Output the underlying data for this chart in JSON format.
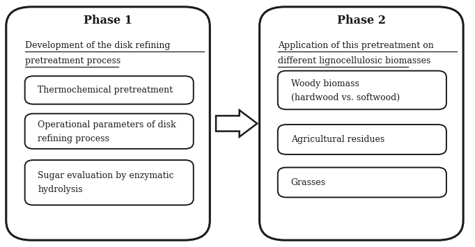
{
  "bg_color": "#ffffff",
  "border_color": "#1a1a1a",
  "text_color": "#1a1a1a",
  "phase1": {
    "title": "Phase 1",
    "subtitle_line1": "Development of the disk refining",
    "subtitle_line2": "pretreatment process",
    "boxes": [
      [
        "Thermochemical pretreatment"
      ],
      [
        "Operational parameters of disk",
        "refining process"
      ],
      [
        "Sugar evaluation by enzymatic",
        "hydrolysis"
      ]
    ]
  },
  "phase2": {
    "title": "Phase 2",
    "subtitle_line1": "Application of this pretreatment on",
    "subtitle_line2": "different lignocellulosic biomasses",
    "boxes": [
      [
        "Woody biomass",
        "(hardwood vs. softwood)"
      ],
      [
        "Agricultural residues"
      ],
      [
        "Grasses"
      ]
    ]
  },
  "figsize": [
    6.82,
    3.55
  ],
  "dpi": 100
}
